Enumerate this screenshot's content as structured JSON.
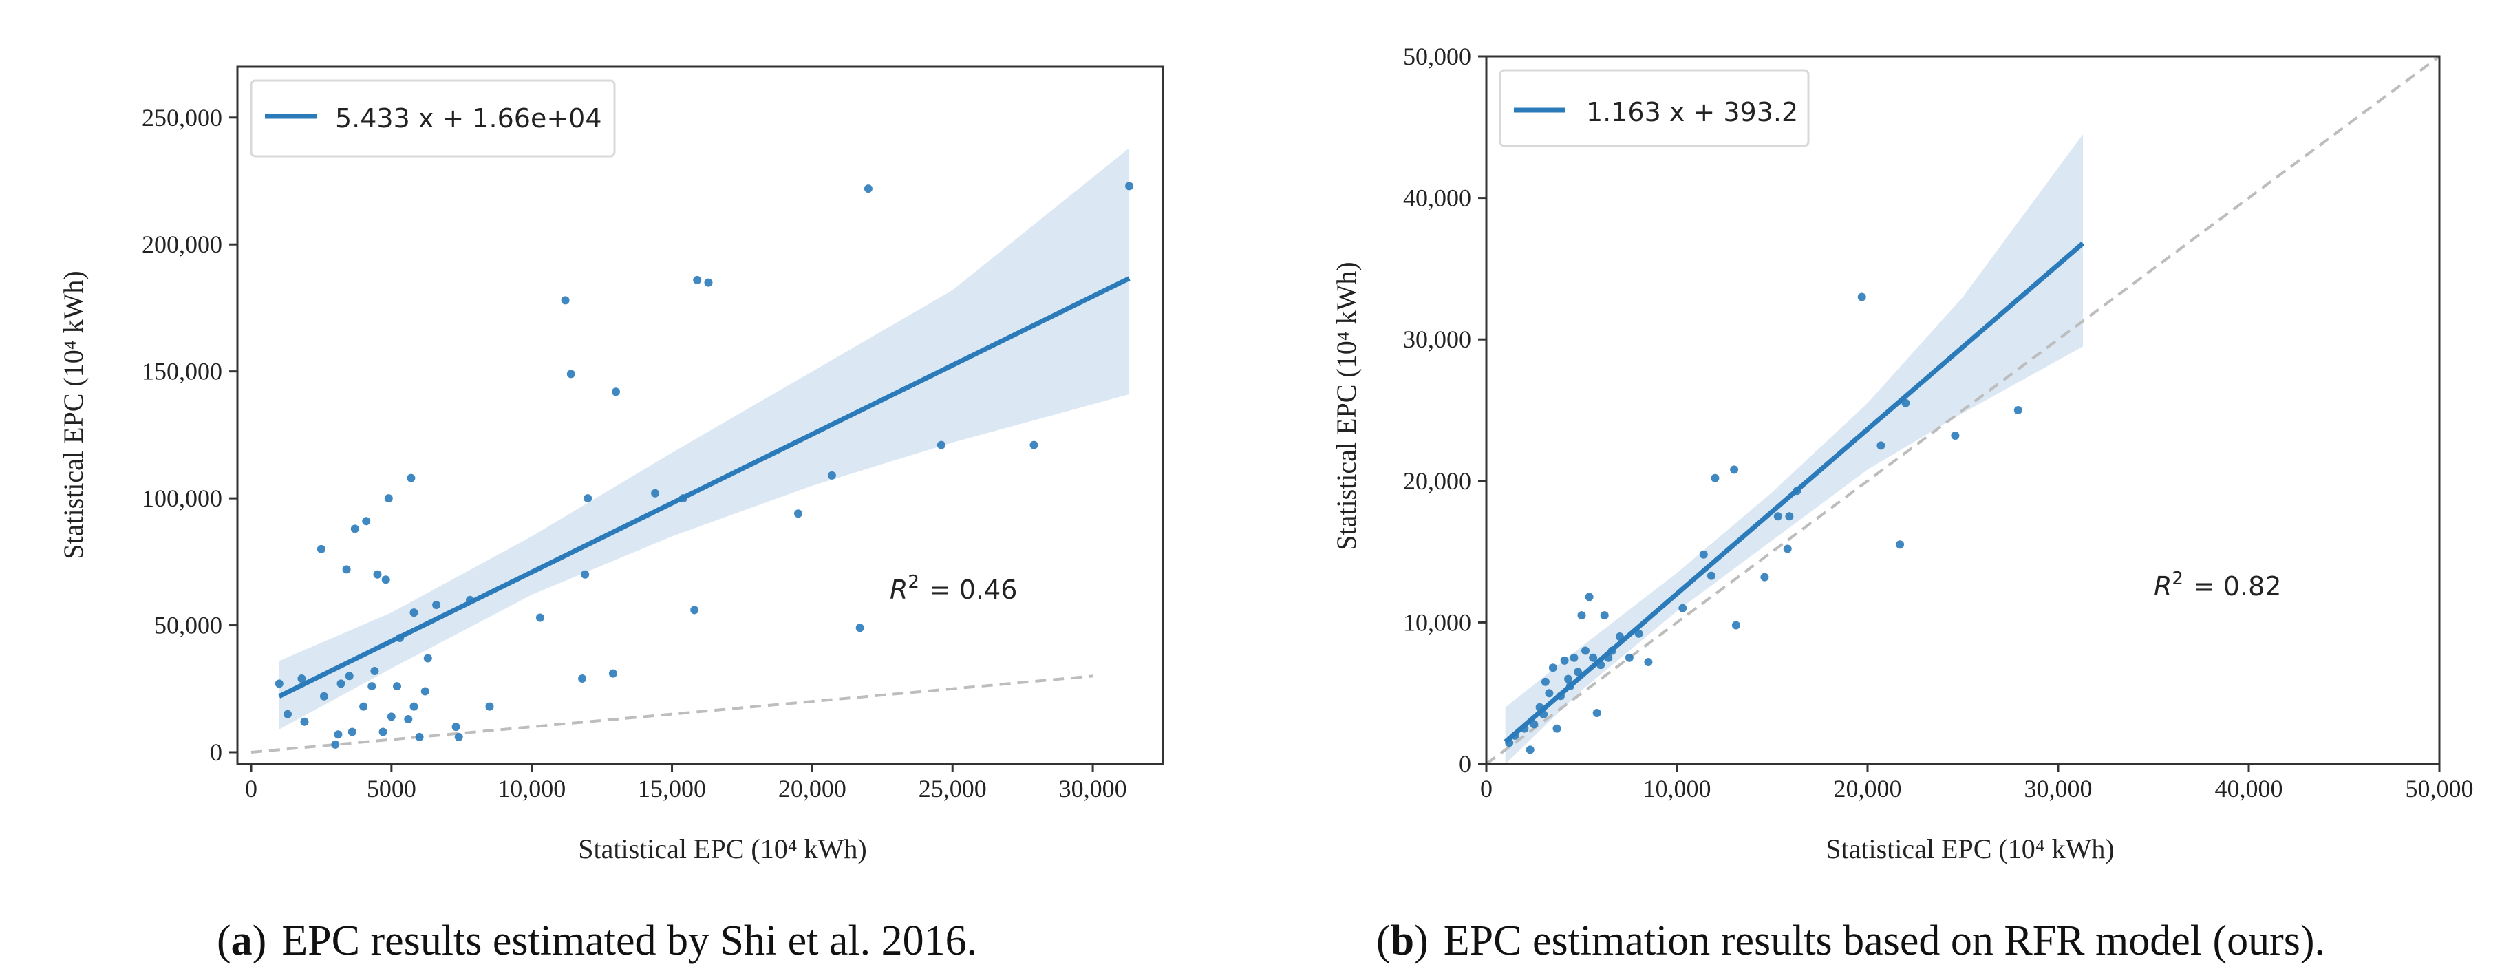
{
  "chart_data": [
    {
      "type": "scatter",
      "id": "a",
      "xlabel": "Statistical EPC (10⁴ kWh)",
      "ylabel": "Statistical EPC (10⁴ kWh)",
      "xlim": [
        0,
        32500
      ],
      "ylim": [
        0,
        270000
      ],
      "x_ticks": [
        0,
        5000,
        10000,
        15000,
        20000,
        25000,
        30000
      ],
      "x_tick_labels": [
        "0",
        "5000",
        "10,000",
        "15,000",
        "20,000",
        "25,000",
        "30,000"
      ],
      "y_ticks": [
        0,
        50000,
        100000,
        150000,
        200000,
        250000
      ],
      "y_tick_labels": [
        "0",
        "50,000",
        "100,000",
        "150,000",
        "200,000",
        "250,000"
      ],
      "legend": "5.433 x + 1.66e+04",
      "r2_label": "R",
      "r2_sup": "2",
      "r2_value": "= 0.46",
      "fit": {
        "slope": 5.433,
        "intercept": 16600,
        "x_range": [
          1000,
          31300
        ]
      },
      "ci_upper": [
        [
          1000,
          36000
        ],
        [
          5000,
          55000
        ],
        [
          10000,
          85000
        ],
        [
          15000,
          118000
        ],
        [
          20000,
          150000
        ],
        [
          25000,
          182000
        ],
        [
          31300,
          238000
        ]
      ],
      "ci_lower": [
        [
          1000,
          9000
        ],
        [
          5000,
          33000
        ],
        [
          10000,
          62000
        ],
        [
          15000,
          85000
        ],
        [
          20000,
          105000
        ],
        [
          25000,
          122000
        ],
        [
          31300,
          141000
        ]
      ],
      "identity": {
        "x_range": [
          0,
          30000
        ]
      },
      "x": [
        1000,
        1300,
        1800,
        1900,
        2500,
        2600,
        3000,
        3100,
        3200,
        3400,
        3500,
        3600,
        3700,
        4000,
        4100,
        4300,
        4400,
        4500,
        4700,
        4800,
        4900,
        5000,
        5200,
        5300,
        5600,
        5700,
        5800,
        5800,
        6000,
        6200,
        6300,
        6600,
        7300,
        7400,
        7800,
        8500,
        10300,
        11200,
        11400,
        11800,
        11900,
        12000,
        12900,
        13000,
        14400,
        15400,
        15800,
        15900,
        16300,
        19500,
        20700,
        21700,
        22000,
        24600,
        27900,
        31300
      ],
      "y": [
        27000,
        15000,
        29000,
        12000,
        80000,
        22000,
        3000,
        7000,
        27000,
        72000,
        30000,
        8000,
        88000,
        18000,
        91000,
        26000,
        32000,
        70000,
        8000,
        68000,
        100000,
        14000,
        26000,
        45000,
        13000,
        108000,
        55000,
        18000,
        6000,
        24000,
        37000,
        58000,
        10000,
        6000,
        60000,
        18000,
        53000,
        178000,
        149000,
        29000,
        70000,
        100000,
        31000,
        142000,
        102000,
        100000,
        56000,
        186000,
        185000,
        94000,
        109000,
        49000,
        222000,
        121000,
        121000,
        223000
      ]
    },
    {
      "type": "scatter",
      "id": "b",
      "xlabel": "Statistical EPC (10⁴ kWh)",
      "ylabel": "Statistical EPC (10⁴ kWh)",
      "xlim": [
        0,
        50000
      ],
      "ylim": [
        0,
        50000
      ],
      "x_ticks": [
        0,
        10000,
        20000,
        30000,
        40000,
        50000
      ],
      "x_tick_labels": [
        "0",
        "10,000",
        "20,000",
        "30,000",
        "40,000",
        "50,000"
      ],
      "y_ticks": [
        0,
        10000,
        20000,
        30000,
        40000,
        50000
      ],
      "y_tick_labels": [
        "0",
        "10,000",
        "20,000",
        "30,000",
        "40,000",
        "50,000"
      ],
      "legend": "1.163 x + 393.2",
      "r2_label": "R",
      "r2_sup": "2",
      "r2_value": "= 0.82",
      "fit": {
        "slope": 1.163,
        "intercept": 393.2,
        "x_range": [
          1000,
          31300
        ]
      },
      "ci_upper": [
        [
          1000,
          4000
        ],
        [
          5000,
          8300
        ],
        [
          10000,
          13500
        ],
        [
          15000,
          19200
        ],
        [
          20000,
          25500
        ],
        [
          25000,
          33000
        ],
        [
          31300,
          44500
        ]
      ],
      "ci_lower": [
        [
          1000,
          0
        ],
        [
          5000,
          5200
        ],
        [
          10000,
          10800
        ],
        [
          15000,
          15800
        ],
        [
          20000,
          20800
        ],
        [
          25000,
          24800
        ],
        [
          31300,
          29500
        ]
      ],
      "identity": {
        "x_range": [
          0,
          50000
        ]
      },
      "x": [
        1200,
        1500,
        2000,
        2300,
        2500,
        2800,
        3000,
        3100,
        3300,
        3500,
        3700,
        3900,
        4100,
        4300,
        4400,
        4600,
        4800,
        5000,
        5200,
        5400,
        5600,
        5800,
        6000,
        6200,
        6400,
        6600,
        7000,
        7500,
        8000,
        8500,
        10300,
        11400,
        11800,
        12000,
        13000,
        13100,
        14600,
        15300,
        15800,
        15900,
        16300,
        19700,
        20700,
        21700,
        22000,
        24600,
        27900
      ],
      "y": [
        1500,
        2000,
        2500,
        1000,
        2800,
        4000,
        3500,
        5800,
        5000,
        6800,
        2500,
        4800,
        7300,
        6000,
        5500,
        7500,
        6500,
        10500,
        8000,
        11800,
        7500,
        3600,
        7000,
        10500,
        7500,
        8000,
        9000,
        7500,
        9200,
        7200,
        11000,
        14800,
        13300,
        20200,
        20800,
        9800,
        13200,
        17500,
        15200,
        17500,
        19300,
        33000,
        22500,
        15500,
        25500,
        23200,
        25000
      ]
    }
  ],
  "captions": [
    {
      "letter": "a",
      "text": "EPC results estimated by Shi et al. 2016."
    },
    {
      "letter": "b",
      "text": "EPC estimation results based on RFR model (ours)."
    }
  ],
  "colors": {
    "series": "#2b7bba",
    "band": "#dbe8f4",
    "identity": "#bdbdbd",
    "frame": "#333333",
    "legend_border": "#d9d9d9"
  }
}
